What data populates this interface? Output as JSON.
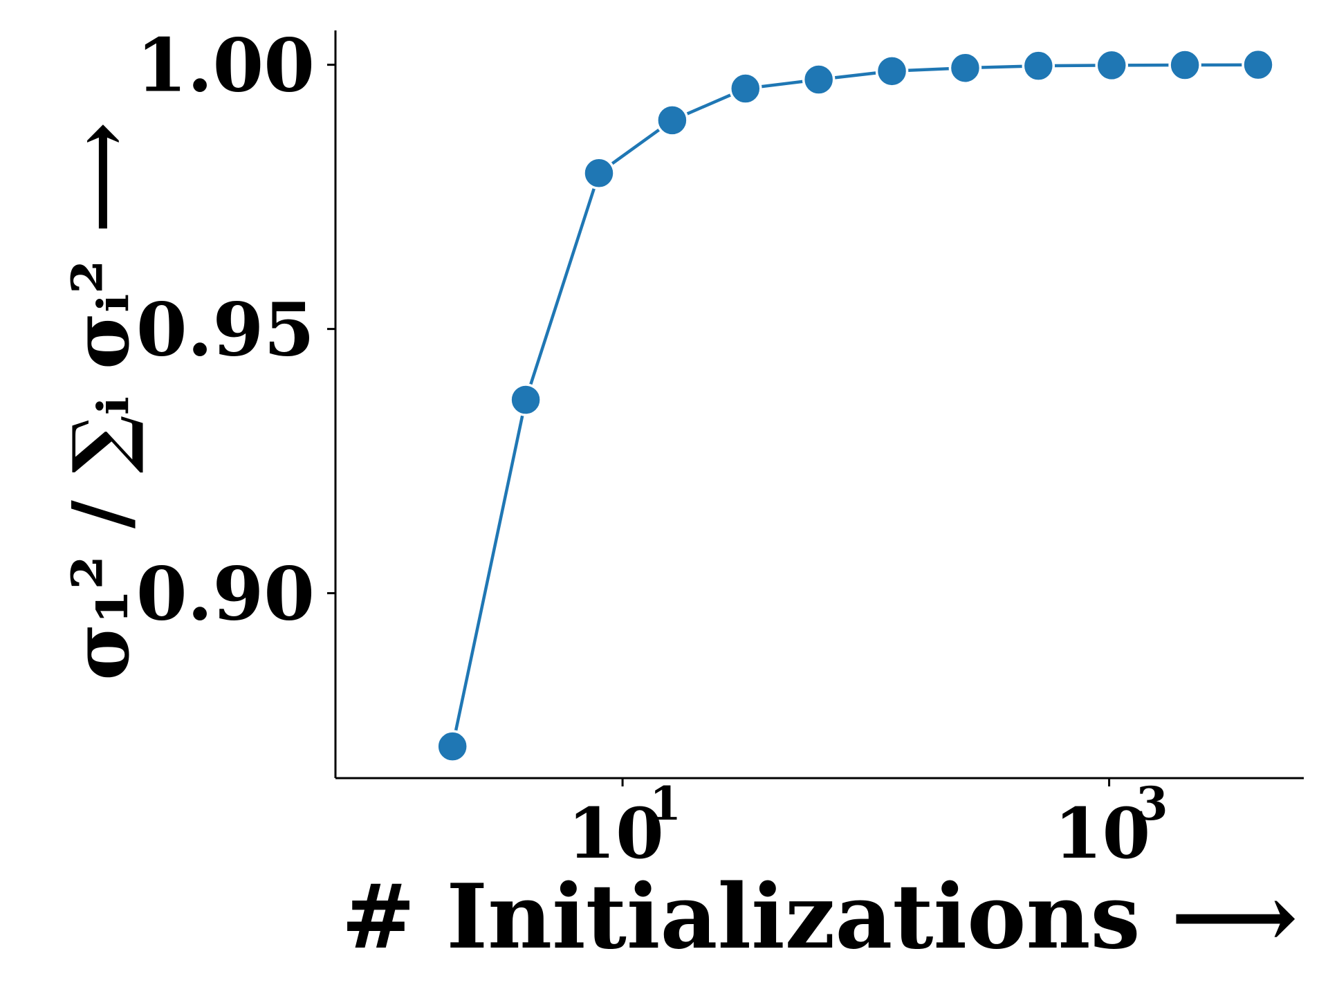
{
  "chart_data": {
    "type": "line",
    "x_scale": "log",
    "xlabel": "# Initializations ⟶",
    "ylabel": "σ₁² / ∑ᵢ σᵢ² ⟶",
    "x_ticks": [
      {
        "value": 10,
        "base": "10",
        "exp": "1"
      },
      {
        "value": 1000,
        "base": "10",
        "exp": "3"
      }
    ],
    "y_ticks": [
      {
        "value": 0.9,
        "label": "0.90"
      },
      {
        "value": 0.95,
        "label": "0.95"
      },
      {
        "value": 1.0,
        "label": "1.00"
      }
    ],
    "xlim_log10": [
      -0.18,
      3.8
    ],
    "ylim": [
      0.865,
      1.0065
    ],
    "grid": false,
    "series": [
      {
        "color": "#1f77b4",
        "marker": "circle",
        "x": [
          2,
          4,
          8,
          16,
          32,
          64,
          128,
          256,
          512,
          1024,
          2048,
          4096
        ],
        "y": [
          0.871,
          0.9366,
          0.9795,
          0.9895,
          0.9955,
          0.9972,
          0.9988,
          0.9994,
          0.9998,
          0.9999,
          0.99995,
          1.0
        ]
      }
    ]
  }
}
